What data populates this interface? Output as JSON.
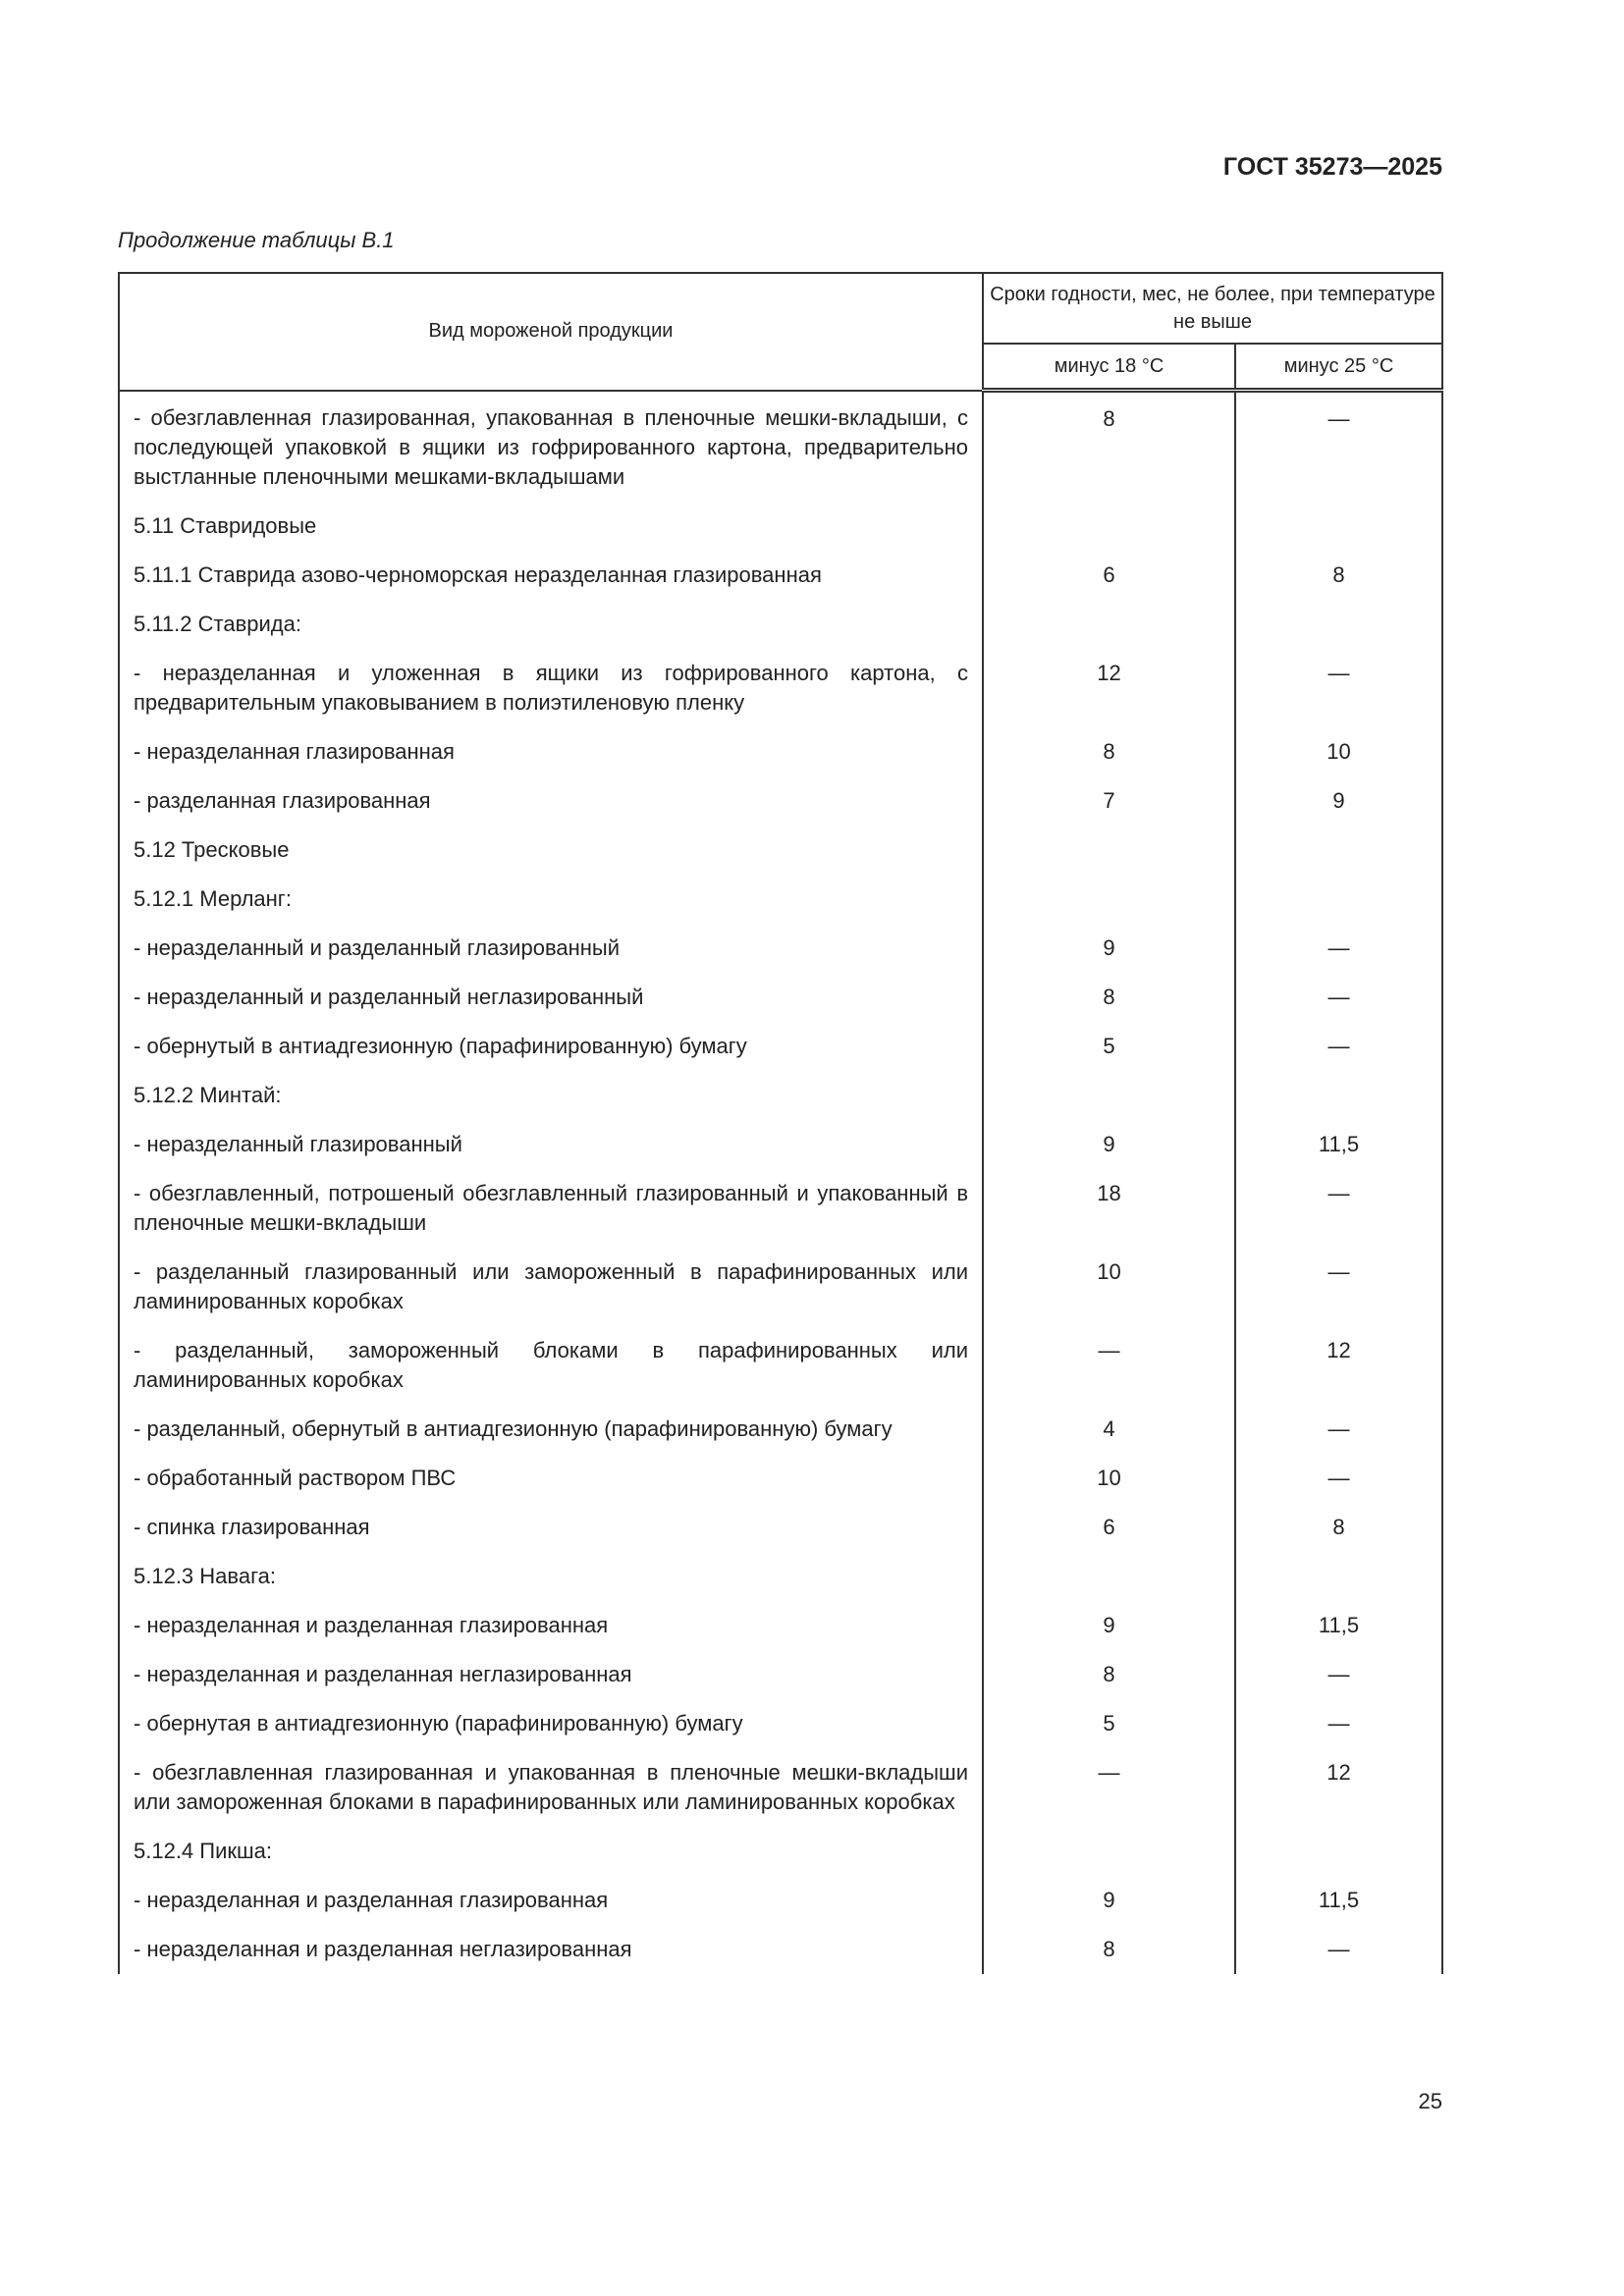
{
  "header": {
    "doc_id": "ГОСТ 35273—2025",
    "caption": "Продолжение таблицы В.1",
    "page_number": "25"
  },
  "table": {
    "col_product": "Вид мороженой продукции",
    "col_group": "Сроки годности, мес, не более, при температуре не выше",
    "col_minus18": "минус 18 °С",
    "col_minus25": "минус 25 °С",
    "rows": [
      {
        "name": "- обезглавленная глазированная, упакованная в пленочные мешки-вкладыши, с последующей упаковкой в ящики из гофрированного картона, предварительно выстланные пленочными мешками-вкладышами",
        "t18": "8",
        "t25": "—"
      },
      {
        "name": "5.11 Ставридовые",
        "t18": "",
        "t25": ""
      },
      {
        "name": "5.11.1 Ставрида азово-черноморская неразделанная глазированная",
        "t18": "6",
        "t25": "8"
      },
      {
        "name": "5.11.2 Ставрида:",
        "t18": "",
        "t25": ""
      },
      {
        "name": "- неразделанная и уложенная в ящики из гофрированного картона, с предварительным упаковыванием в полиэтиленовую пленку",
        "t18": "12",
        "t25": "—"
      },
      {
        "name": "- неразделанная глазированная",
        "t18": "8",
        "t25": "10"
      },
      {
        "name": "- разделанная глазированная",
        "t18": "7",
        "t25": "9"
      },
      {
        "name": "5.12 Тресковые",
        "t18": "",
        "t25": ""
      },
      {
        "name": "5.12.1 Мерланг:",
        "t18": "",
        "t25": ""
      },
      {
        "name": "- неразделанный и разделанный глазированный",
        "t18": "9",
        "t25": "—"
      },
      {
        "name": "- неразделанный и разделанный неглазированный",
        "t18": "8",
        "t25": "—"
      },
      {
        "name": "- обернутый в антиадгезионную (парафинированную) бумагу",
        "t18": "5",
        "t25": "—"
      },
      {
        "name": "5.12.2 Минтай:",
        "t18": "",
        "t25": ""
      },
      {
        "name": "- неразделанный глазированный",
        "t18": "9",
        "t25": "11,5"
      },
      {
        "name": "- обезглавленный, потрошеный обезглавленный глазированный и упакованный в пленочные мешки-вкладыши",
        "t18": "18",
        "t25": "—"
      },
      {
        "name": "- разделанный глазированный или замороженный в парафинированных или ламинированных коробках",
        "t18": "10",
        "t25": "—"
      },
      {
        "name": "- разделанный, замороженный блоками в парафинированных или ламинированных коробках",
        "t18": "—",
        "t25": "12"
      },
      {
        "name": "- разделанный, обернутый в антиадгезионную (парафинированную) бумагу",
        "t18": "4",
        "t25": "—"
      },
      {
        "name": "- обработанный раствором ПВС",
        "t18": "10",
        "t25": "—"
      },
      {
        "name": "- спинка глазированная",
        "t18": "6",
        "t25": "8"
      },
      {
        "name": "5.12.3 Навага:",
        "t18": "",
        "t25": ""
      },
      {
        "name": "- неразделанная и разделанная глазированная",
        "t18": "9",
        "t25": "11,5"
      },
      {
        "name": "- неразделанная и разделанная неглазированная",
        "t18": "8",
        "t25": "—"
      },
      {
        "name": "- обернутая в антиадгезионную (парафинированную) бумагу",
        "t18": "5",
        "t25": "—"
      },
      {
        "name": "- обезглавленная глазированная и упакованная в пленочные мешки-вкладыши или замороженная блоками в парафинированных или ламинированных коробках",
        "t18": "—",
        "t25": "12"
      },
      {
        "name": "5.12.4 Пикша:",
        "t18": "",
        "t25": ""
      },
      {
        "name": "- неразделанная и разделанная глазированная",
        "t18": "9",
        "t25": "11,5"
      },
      {
        "name": "- неразделанная и разделанная неглазированная",
        "t18": "8",
        "t25": "—"
      }
    ]
  }
}
